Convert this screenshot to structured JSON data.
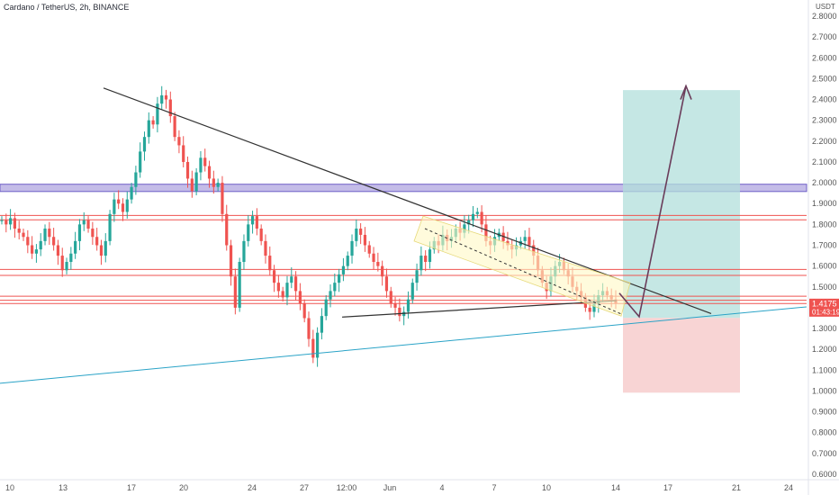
{
  "chart_data": {
    "type": "candlestick",
    "title": "Cardano / TetherUS, 2h, BINANCE",
    "currency_label": "USDT",
    "price_label": "1.4175",
    "countdown_label": "01:43:19",
    "ylim": [
      0.6,
      2.85
    ],
    "y_ticks": [
      "2.8000",
      "2.7000",
      "2.6000",
      "2.5000",
      "2.4000",
      "2.3000",
      "2.2000",
      "2.1000",
      "2.0000",
      "1.9000",
      "1.8000",
      "1.7000",
      "1.6000",
      "1.5000",
      "1.4000",
      "1.3000",
      "1.2000",
      "1.1000",
      "1.0000",
      "0.9000",
      "0.8000",
      "0.7000",
      "0.6000"
    ],
    "x_ticks": [
      "10",
      "13",
      "17",
      "20",
      "24",
      "27",
      "12:00",
      "Jun",
      "4",
      "7",
      "10",
      "14",
      "17",
      "21",
      "24"
    ],
    "grid": false,
    "colors": {
      "up": "#26a69a",
      "down": "#ef5350",
      "purple_zone": "#9c8fd8",
      "horizontal_line": "#ef5350",
      "trendline": "#333333",
      "support_line": "#2aa3c7",
      "target_zone": "#b2dfdb",
      "stop_zone": "#f5c6c6",
      "arrow": "#6a3c5a",
      "price_badge": "#ef5350"
    },
    "series": [
      {
        "values": [
          1.82,
          1.8,
          1.83,
          1.78,
          1.76,
          1.74,
          1.7,
          1.66,
          1.68,
          1.72,
          1.78,
          1.74,
          1.7,
          1.65,
          1.58,
          1.62,
          1.66,
          1.72,
          1.8,
          1.82,
          1.78,
          1.74,
          1.7,
          1.65,
          1.72,
          1.85,
          1.92,
          1.9,
          1.86,
          1.92,
          1.98,
          2.05,
          2.15,
          2.22,
          2.3,
          2.28,
          2.38,
          2.42,
          2.4,
          2.32,
          2.22,
          2.18,
          2.1,
          2.02,
          1.96,
          2.05,
          2.12,
          2.08,
          2.02,
          1.98,
          2.0,
          1.85,
          1.7,
          1.55,
          1.4,
          1.62,
          1.72,
          1.8,
          1.84,
          1.78,
          1.72,
          1.65,
          1.58,
          1.52,
          1.48,
          1.45,
          1.52,
          1.55,
          1.48,
          1.42,
          1.35,
          1.25,
          1.16,
          1.28,
          1.36,
          1.44,
          1.48,
          1.52,
          1.56,
          1.6,
          1.65,
          1.72,
          1.78,
          1.75,
          1.7,
          1.66,
          1.62,
          1.6,
          1.55,
          1.48,
          1.42,
          1.4,
          1.36,
          1.38,
          1.44,
          1.52,
          1.58,
          1.65,
          1.62,
          1.68,
          1.72,
          1.7,
          1.75,
          1.72,
          1.74,
          1.78,
          1.76,
          1.8,
          1.82,
          1.85,
          1.86,
          1.8,
          1.72,
          1.7,
          1.74,
          1.76,
          1.72,
          1.7,
          1.68,
          1.7,
          1.72,
          1.74,
          1.7,
          1.65,
          1.58,
          1.52,
          1.48,
          1.55,
          1.6,
          1.62,
          1.58,
          1.55,
          1.5,
          1.48,
          1.45,
          1.4,
          1.38,
          1.42,
          1.46,
          1.48,
          1.46,
          1.44,
          1.42
        ]
      }
    ],
    "horizontal_levels": [
      1.843,
      1.822,
      1.584,
      1.555,
      1.455,
      1.436,
      1.42
    ],
    "purple_zone_range": [
      1.958,
      1.993
    ],
    "position": {
      "target": 2.445,
      "entry": 1.351,
      "stop": 0.992
    }
  }
}
